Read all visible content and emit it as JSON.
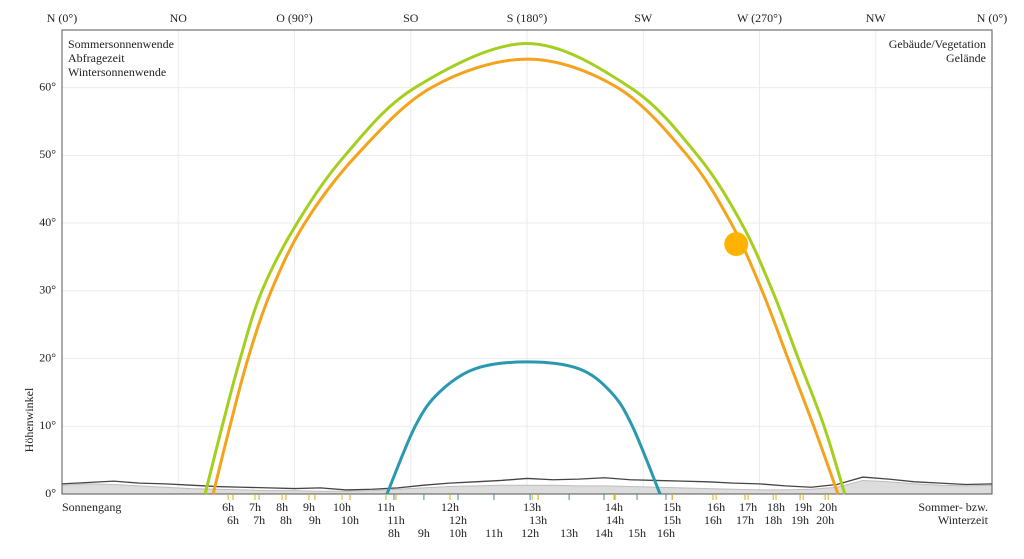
{
  "chart_data": {
    "type": "line",
    "y_label": "Höhenwinkel",
    "footer_left": "Sonnengang",
    "footer_right": [
      "Sommer- bzw.",
      "Winterzeit"
    ],
    "xlim": [
      0,
      360
    ],
    "ylim": [
      0,
      68.5
    ],
    "grid": true,
    "xticks": [
      {
        "value": 0,
        "label": "N (0°)"
      },
      {
        "value": 45,
        "label": "NO"
      },
      {
        "value": 90,
        "label": "O (90°)"
      },
      {
        "value": 135,
        "label": "SO"
      },
      {
        "value": 180,
        "label": "S (180°)"
      },
      {
        "value": 225,
        "label": "SW"
      },
      {
        "value": 270,
        "label": "W (270°)"
      },
      {
        "value": 315,
        "label": "NW"
      },
      {
        "value": 360,
        "label": "N (0°)"
      }
    ],
    "yticks": [
      {
        "value": 0,
        "label": "0°"
      },
      {
        "value": 10,
        "label": "10°"
      },
      {
        "value": 20,
        "label": "20°"
      },
      {
        "value": 30,
        "label": "30°"
      },
      {
        "value": 40,
        "label": "40°"
      },
      {
        "value": 50,
        "label": "50°"
      },
      {
        "value": 60,
        "label": "60°"
      }
    ],
    "series": [
      {
        "name": "Sommersonnenwende",
        "color": "#a5cf1f",
        "label_color": "#c8bf14",
        "x": [
          55.4,
          62,
          69,
          77.4,
          91,
          109.6,
          136.7,
          180,
          220,
          246,
          263,
          275,
          285,
          295,
          303
        ],
        "values": [
          0,
          10,
          20,
          30,
          40,
          50,
          60,
          66.5,
          60,
          50,
          40,
          30,
          20,
          10,
          0
        ],
        "hours": {
          "x": [
            64.3,
            74.7,
            85.2,
            95.6,
            108.4,
            125.4,
            150.2,
            182.0,
            213.7,
            236.2,
            253.2,
            265.6,
            276.4,
            286.9,
            296.6
          ],
          "labels": [
            "6h",
            "7h",
            "8h",
            "9h",
            "10h",
            "11h",
            "12h",
            "13h",
            "14h",
            "15h",
            "16h",
            "17h",
            "18h",
            "19h",
            "20h"
          ]
        }
      },
      {
        "name": "Abfragezeit",
        "color": "#f5a31c",
        "label_color": "#e0a21a",
        "x": [
          58.5,
          65,
          72,
          81,
          94,
          114,
          143,
          180,
          215,
          242,
          259,
          271,
          281,
          291,
          300.4
        ],
        "values": [
          0,
          10,
          20,
          30,
          40,
          50,
          60,
          64.2,
          60,
          50,
          40,
          30,
          20,
          10,
          0
        ],
        "hours": {
          "x": [
            66.2,
            76.3,
            86.7,
            97.9,
            111.5,
            129.3,
            153.3,
            184.3,
            214.1,
            236.2,
            252.0,
            264.4,
            275.3,
            285.7,
            295.4
          ],
          "labels": [
            "6h",
            "7h",
            "8h",
            "9h",
            "10h",
            "11h",
            "12h",
            "13h",
            "14h",
            "15h",
            "16h",
            "17h",
            "18h",
            "19h",
            "20h"
          ]
        }
      },
      {
        "name": "Wintersonnenwende",
        "color": "#2a98b0",
        "label_color": "#3a8fb0",
        "x": [
          125.8,
          136.7,
          146,
          160,
          180,
          200,
          212.6,
          220.8,
          231.5
        ],
        "values": [
          0,
          10,
          15,
          18.5,
          19.5,
          18.5,
          15,
          10,
          0
        ],
        "hours": {
          "x": [
            128.5,
            140.1,
            153.3,
            167.2,
            181.2,
            196.3,
            209.8,
            222.6,
            233.8
          ],
          "labels": [
            "8h",
            "9h",
            "10h",
            "11h",
            "12h",
            "13h",
            "14h",
            "15h",
            "16h"
          ]
        }
      }
    ],
    "horizon": [
      {
        "name": "Gelände",
        "color": "#bdbdbd",
        "fill": "#dcdcdc",
        "x": [
          0,
          10,
          20,
          30,
          40,
          50,
          60,
          70,
          80,
          90,
          100,
          110,
          120,
          130,
          140,
          150,
          160,
          170,
          180,
          190,
          200,
          210,
          220,
          230,
          240,
          250,
          260,
          270,
          280,
          290,
          300,
          310,
          320,
          330,
          340,
          350,
          360
        ],
        "values": [
          1.3,
          1.5,
          1.4,
          1.2,
          1.0,
          0.8,
          0.7,
          0.6,
          0.5,
          0.5,
          0.4,
          0.4,
          0.5,
          0.7,
          0.9,
          1.1,
          1.2,
          1.3,
          1.3,
          1.3,
          1.2,
          1.2,
          1.1,
          1.0,
          0.9,
          0.8,
          0.7,
          0.6,
          0.6,
          0.7,
          1.0,
          2.0,
          1.8,
          1.5,
          1.3,
          1.2,
          1.3
        ]
      },
      {
        "name": "Gebäude/Vegetation",
        "color": "#444444",
        "x": [
          0,
          10,
          20,
          30,
          40,
          50,
          60,
          70,
          80,
          90,
          100,
          110,
          120,
          130,
          140,
          150,
          160,
          170,
          180,
          190,
          200,
          210,
          220,
          230,
          240,
          250,
          260,
          270,
          280,
          290,
          300,
          310,
          320,
          330,
          340,
          350,
          360
        ],
        "values": [
          1.5,
          1.7,
          1.9,
          1.6,
          1.5,
          1.3,
          1.1,
          1.0,
          0.9,
          0.8,
          0.9,
          0.6,
          0.7,
          0.9,
          1.3,
          1.6,
          1.8,
          2.0,
          2.3,
          2.1,
          2.2,
          2.4,
          2.1,
          2.0,
          1.9,
          1.8,
          1.6,
          1.5,
          1.2,
          1.0,
          1.4,
          2.5,
          2.2,
          1.8,
          1.6,
          1.4,
          1.5
        ]
      }
    ],
    "sun": {
      "x": 261,
      "y": 36.9,
      "color": "#ffb300"
    }
  }
}
